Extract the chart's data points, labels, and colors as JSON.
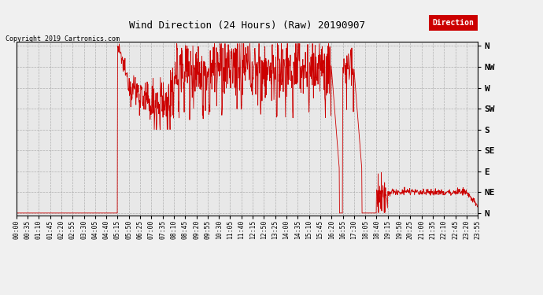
{
  "title": "Wind Direction (24 Hours) (Raw) 20190907",
  "copyright": "Copyright 2019 Cartronics.com",
  "legend_label": "Direction",
  "legend_bg": "#cc0000",
  "line_color": "#cc0000",
  "bg_color": "#e8e8e8",
  "plot_bg": "#e8e8e8",
  "fig_bg": "#f0f0f0",
  "grid_color": "#999999",
  "ytick_labels": [
    "N",
    "NE",
    "E",
    "SE",
    "S",
    "SW",
    "W",
    "NW",
    "N"
  ],
  "ytick_values": [
    0,
    45,
    90,
    135,
    180,
    225,
    270,
    315,
    360
  ],
  "ylim": [
    -5,
    370
  ],
  "xlim": [
    0,
    1435
  ],
  "xtick_labels": [
    "00:00",
    "00:35",
    "01:10",
    "01:45",
    "02:20",
    "02:55",
    "03:30",
    "04:05",
    "04:40",
    "05:15",
    "05:50",
    "06:25",
    "07:00",
    "07:35",
    "08:10",
    "08:45",
    "09:20",
    "09:55",
    "10:30",
    "11:05",
    "11:40",
    "12:15",
    "12:50",
    "13:25",
    "14:00",
    "14:35",
    "15:10",
    "15:45",
    "16:20",
    "16:55",
    "17:30",
    "18:05",
    "18:40",
    "19:15",
    "19:50",
    "20:25",
    "21:00",
    "21:35",
    "22:10",
    "22:45",
    "23:20",
    "23:55"
  ]
}
